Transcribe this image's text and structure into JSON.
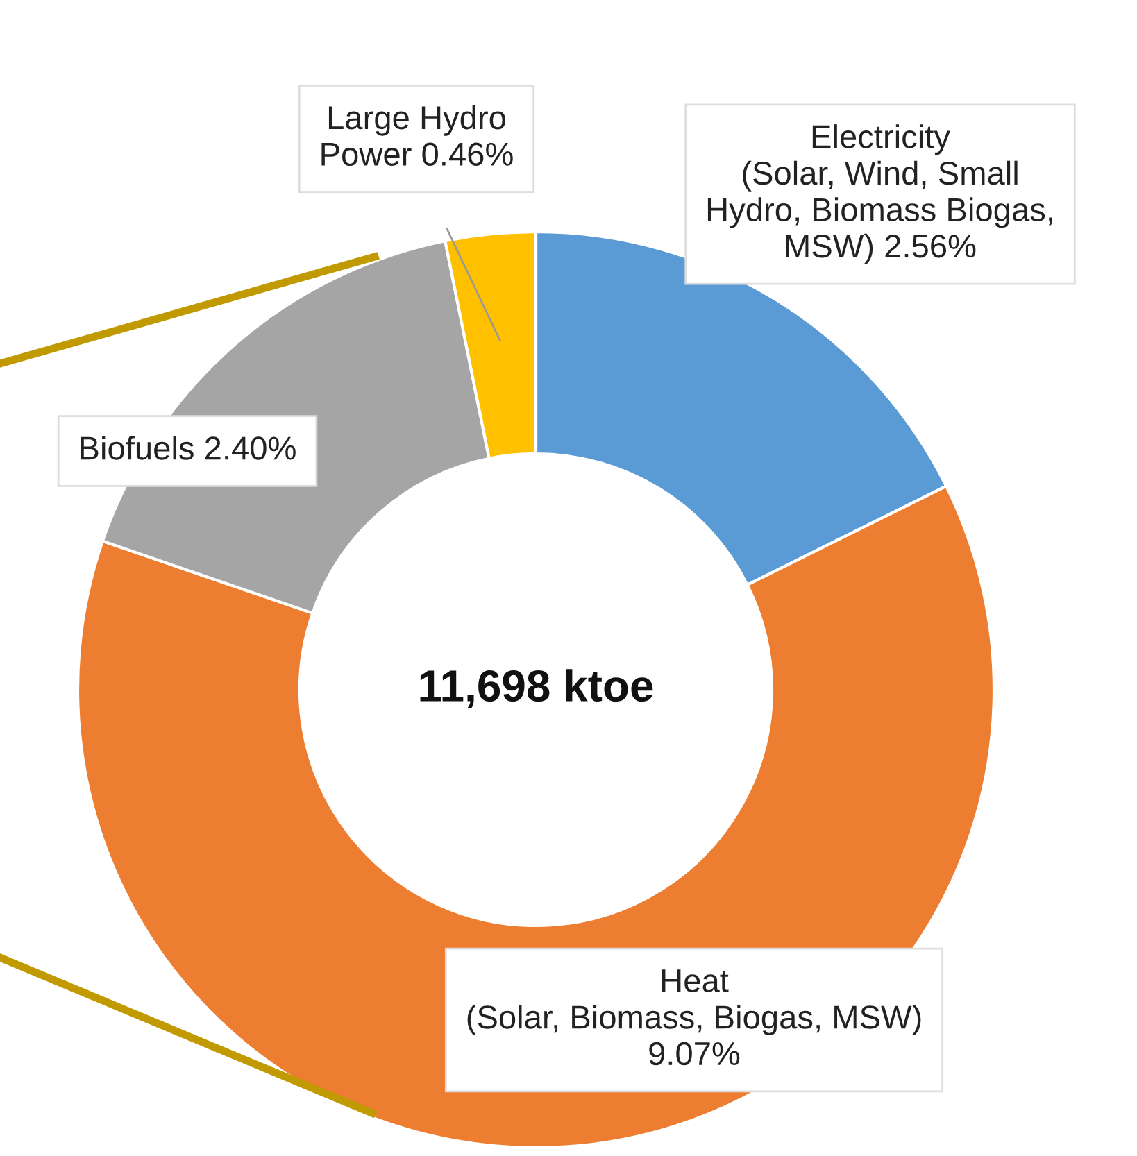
{
  "chart_data": {
    "type": "donut",
    "categories": [
      "Electricity\n(Solar, Wind, Small\nHydro, Biomass Biogas,\nMSW)",
      "Heat\n(Solar, Biomass, Biogas, MSW)",
      "Biofuels",
      "Large Hydro\nPower"
    ],
    "values": [
      2.56,
      9.07,
      2.4,
      0.46
    ],
    "value_labels": [
      "2.56%",
      "9.07%",
      "2.40%",
      "0.46%"
    ],
    "colors": [
      "#5b9bd5",
      "#ed7d31",
      "#a5a5a5",
      "#ffc000"
    ],
    "annotations": [
      "11,698 ktoe"
    ],
    "legend": false
  }
}
